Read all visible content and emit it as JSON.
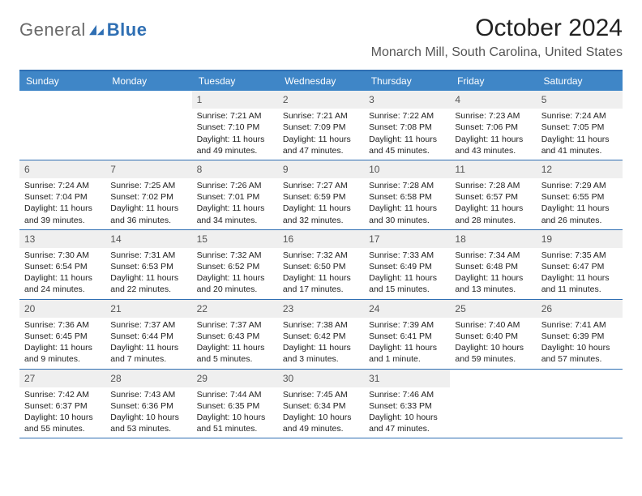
{
  "brand": {
    "part1": "General",
    "part2": "Blue"
  },
  "title": "October 2024",
  "location": "Monarch Mill, South Carolina, United States",
  "colors": {
    "header_bg": "#3f86c7",
    "accent_border": "#2f6fb3",
    "daynum_bg": "#efefef",
    "text": "#222222",
    "muted": "#555555"
  },
  "days_of_week": [
    "Sunday",
    "Monday",
    "Tuesday",
    "Wednesday",
    "Thursday",
    "Friday",
    "Saturday"
  ],
  "weeks": [
    [
      null,
      null,
      {
        "n": "1",
        "sr": "Sunrise: 7:21 AM",
        "ss": "Sunset: 7:10 PM",
        "dl": "Daylight: 11 hours and 49 minutes."
      },
      {
        "n": "2",
        "sr": "Sunrise: 7:21 AM",
        "ss": "Sunset: 7:09 PM",
        "dl": "Daylight: 11 hours and 47 minutes."
      },
      {
        "n": "3",
        "sr": "Sunrise: 7:22 AM",
        "ss": "Sunset: 7:08 PM",
        "dl": "Daylight: 11 hours and 45 minutes."
      },
      {
        "n": "4",
        "sr": "Sunrise: 7:23 AM",
        "ss": "Sunset: 7:06 PM",
        "dl": "Daylight: 11 hours and 43 minutes."
      },
      {
        "n": "5",
        "sr": "Sunrise: 7:24 AM",
        "ss": "Sunset: 7:05 PM",
        "dl": "Daylight: 11 hours and 41 minutes."
      }
    ],
    [
      {
        "n": "6",
        "sr": "Sunrise: 7:24 AM",
        "ss": "Sunset: 7:04 PM",
        "dl": "Daylight: 11 hours and 39 minutes."
      },
      {
        "n": "7",
        "sr": "Sunrise: 7:25 AM",
        "ss": "Sunset: 7:02 PM",
        "dl": "Daylight: 11 hours and 36 minutes."
      },
      {
        "n": "8",
        "sr": "Sunrise: 7:26 AM",
        "ss": "Sunset: 7:01 PM",
        "dl": "Daylight: 11 hours and 34 minutes."
      },
      {
        "n": "9",
        "sr": "Sunrise: 7:27 AM",
        "ss": "Sunset: 6:59 PM",
        "dl": "Daylight: 11 hours and 32 minutes."
      },
      {
        "n": "10",
        "sr": "Sunrise: 7:28 AM",
        "ss": "Sunset: 6:58 PM",
        "dl": "Daylight: 11 hours and 30 minutes."
      },
      {
        "n": "11",
        "sr": "Sunrise: 7:28 AM",
        "ss": "Sunset: 6:57 PM",
        "dl": "Daylight: 11 hours and 28 minutes."
      },
      {
        "n": "12",
        "sr": "Sunrise: 7:29 AM",
        "ss": "Sunset: 6:55 PM",
        "dl": "Daylight: 11 hours and 26 minutes."
      }
    ],
    [
      {
        "n": "13",
        "sr": "Sunrise: 7:30 AM",
        "ss": "Sunset: 6:54 PM",
        "dl": "Daylight: 11 hours and 24 minutes."
      },
      {
        "n": "14",
        "sr": "Sunrise: 7:31 AM",
        "ss": "Sunset: 6:53 PM",
        "dl": "Daylight: 11 hours and 22 minutes."
      },
      {
        "n": "15",
        "sr": "Sunrise: 7:32 AM",
        "ss": "Sunset: 6:52 PM",
        "dl": "Daylight: 11 hours and 20 minutes."
      },
      {
        "n": "16",
        "sr": "Sunrise: 7:32 AM",
        "ss": "Sunset: 6:50 PM",
        "dl": "Daylight: 11 hours and 17 minutes."
      },
      {
        "n": "17",
        "sr": "Sunrise: 7:33 AM",
        "ss": "Sunset: 6:49 PM",
        "dl": "Daylight: 11 hours and 15 minutes."
      },
      {
        "n": "18",
        "sr": "Sunrise: 7:34 AM",
        "ss": "Sunset: 6:48 PM",
        "dl": "Daylight: 11 hours and 13 minutes."
      },
      {
        "n": "19",
        "sr": "Sunrise: 7:35 AM",
        "ss": "Sunset: 6:47 PM",
        "dl": "Daylight: 11 hours and 11 minutes."
      }
    ],
    [
      {
        "n": "20",
        "sr": "Sunrise: 7:36 AM",
        "ss": "Sunset: 6:45 PM",
        "dl": "Daylight: 11 hours and 9 minutes."
      },
      {
        "n": "21",
        "sr": "Sunrise: 7:37 AM",
        "ss": "Sunset: 6:44 PM",
        "dl": "Daylight: 11 hours and 7 minutes."
      },
      {
        "n": "22",
        "sr": "Sunrise: 7:37 AM",
        "ss": "Sunset: 6:43 PM",
        "dl": "Daylight: 11 hours and 5 minutes."
      },
      {
        "n": "23",
        "sr": "Sunrise: 7:38 AM",
        "ss": "Sunset: 6:42 PM",
        "dl": "Daylight: 11 hours and 3 minutes."
      },
      {
        "n": "24",
        "sr": "Sunrise: 7:39 AM",
        "ss": "Sunset: 6:41 PM",
        "dl": "Daylight: 11 hours and 1 minute."
      },
      {
        "n": "25",
        "sr": "Sunrise: 7:40 AM",
        "ss": "Sunset: 6:40 PM",
        "dl": "Daylight: 10 hours and 59 minutes."
      },
      {
        "n": "26",
        "sr": "Sunrise: 7:41 AM",
        "ss": "Sunset: 6:39 PM",
        "dl": "Daylight: 10 hours and 57 minutes."
      }
    ],
    [
      {
        "n": "27",
        "sr": "Sunrise: 7:42 AM",
        "ss": "Sunset: 6:37 PM",
        "dl": "Daylight: 10 hours and 55 minutes."
      },
      {
        "n": "28",
        "sr": "Sunrise: 7:43 AM",
        "ss": "Sunset: 6:36 PM",
        "dl": "Daylight: 10 hours and 53 minutes."
      },
      {
        "n": "29",
        "sr": "Sunrise: 7:44 AM",
        "ss": "Sunset: 6:35 PM",
        "dl": "Daylight: 10 hours and 51 minutes."
      },
      {
        "n": "30",
        "sr": "Sunrise: 7:45 AM",
        "ss": "Sunset: 6:34 PM",
        "dl": "Daylight: 10 hours and 49 minutes."
      },
      {
        "n": "31",
        "sr": "Sunrise: 7:46 AM",
        "ss": "Sunset: 6:33 PM",
        "dl": "Daylight: 10 hours and 47 minutes."
      },
      null,
      null
    ]
  ]
}
